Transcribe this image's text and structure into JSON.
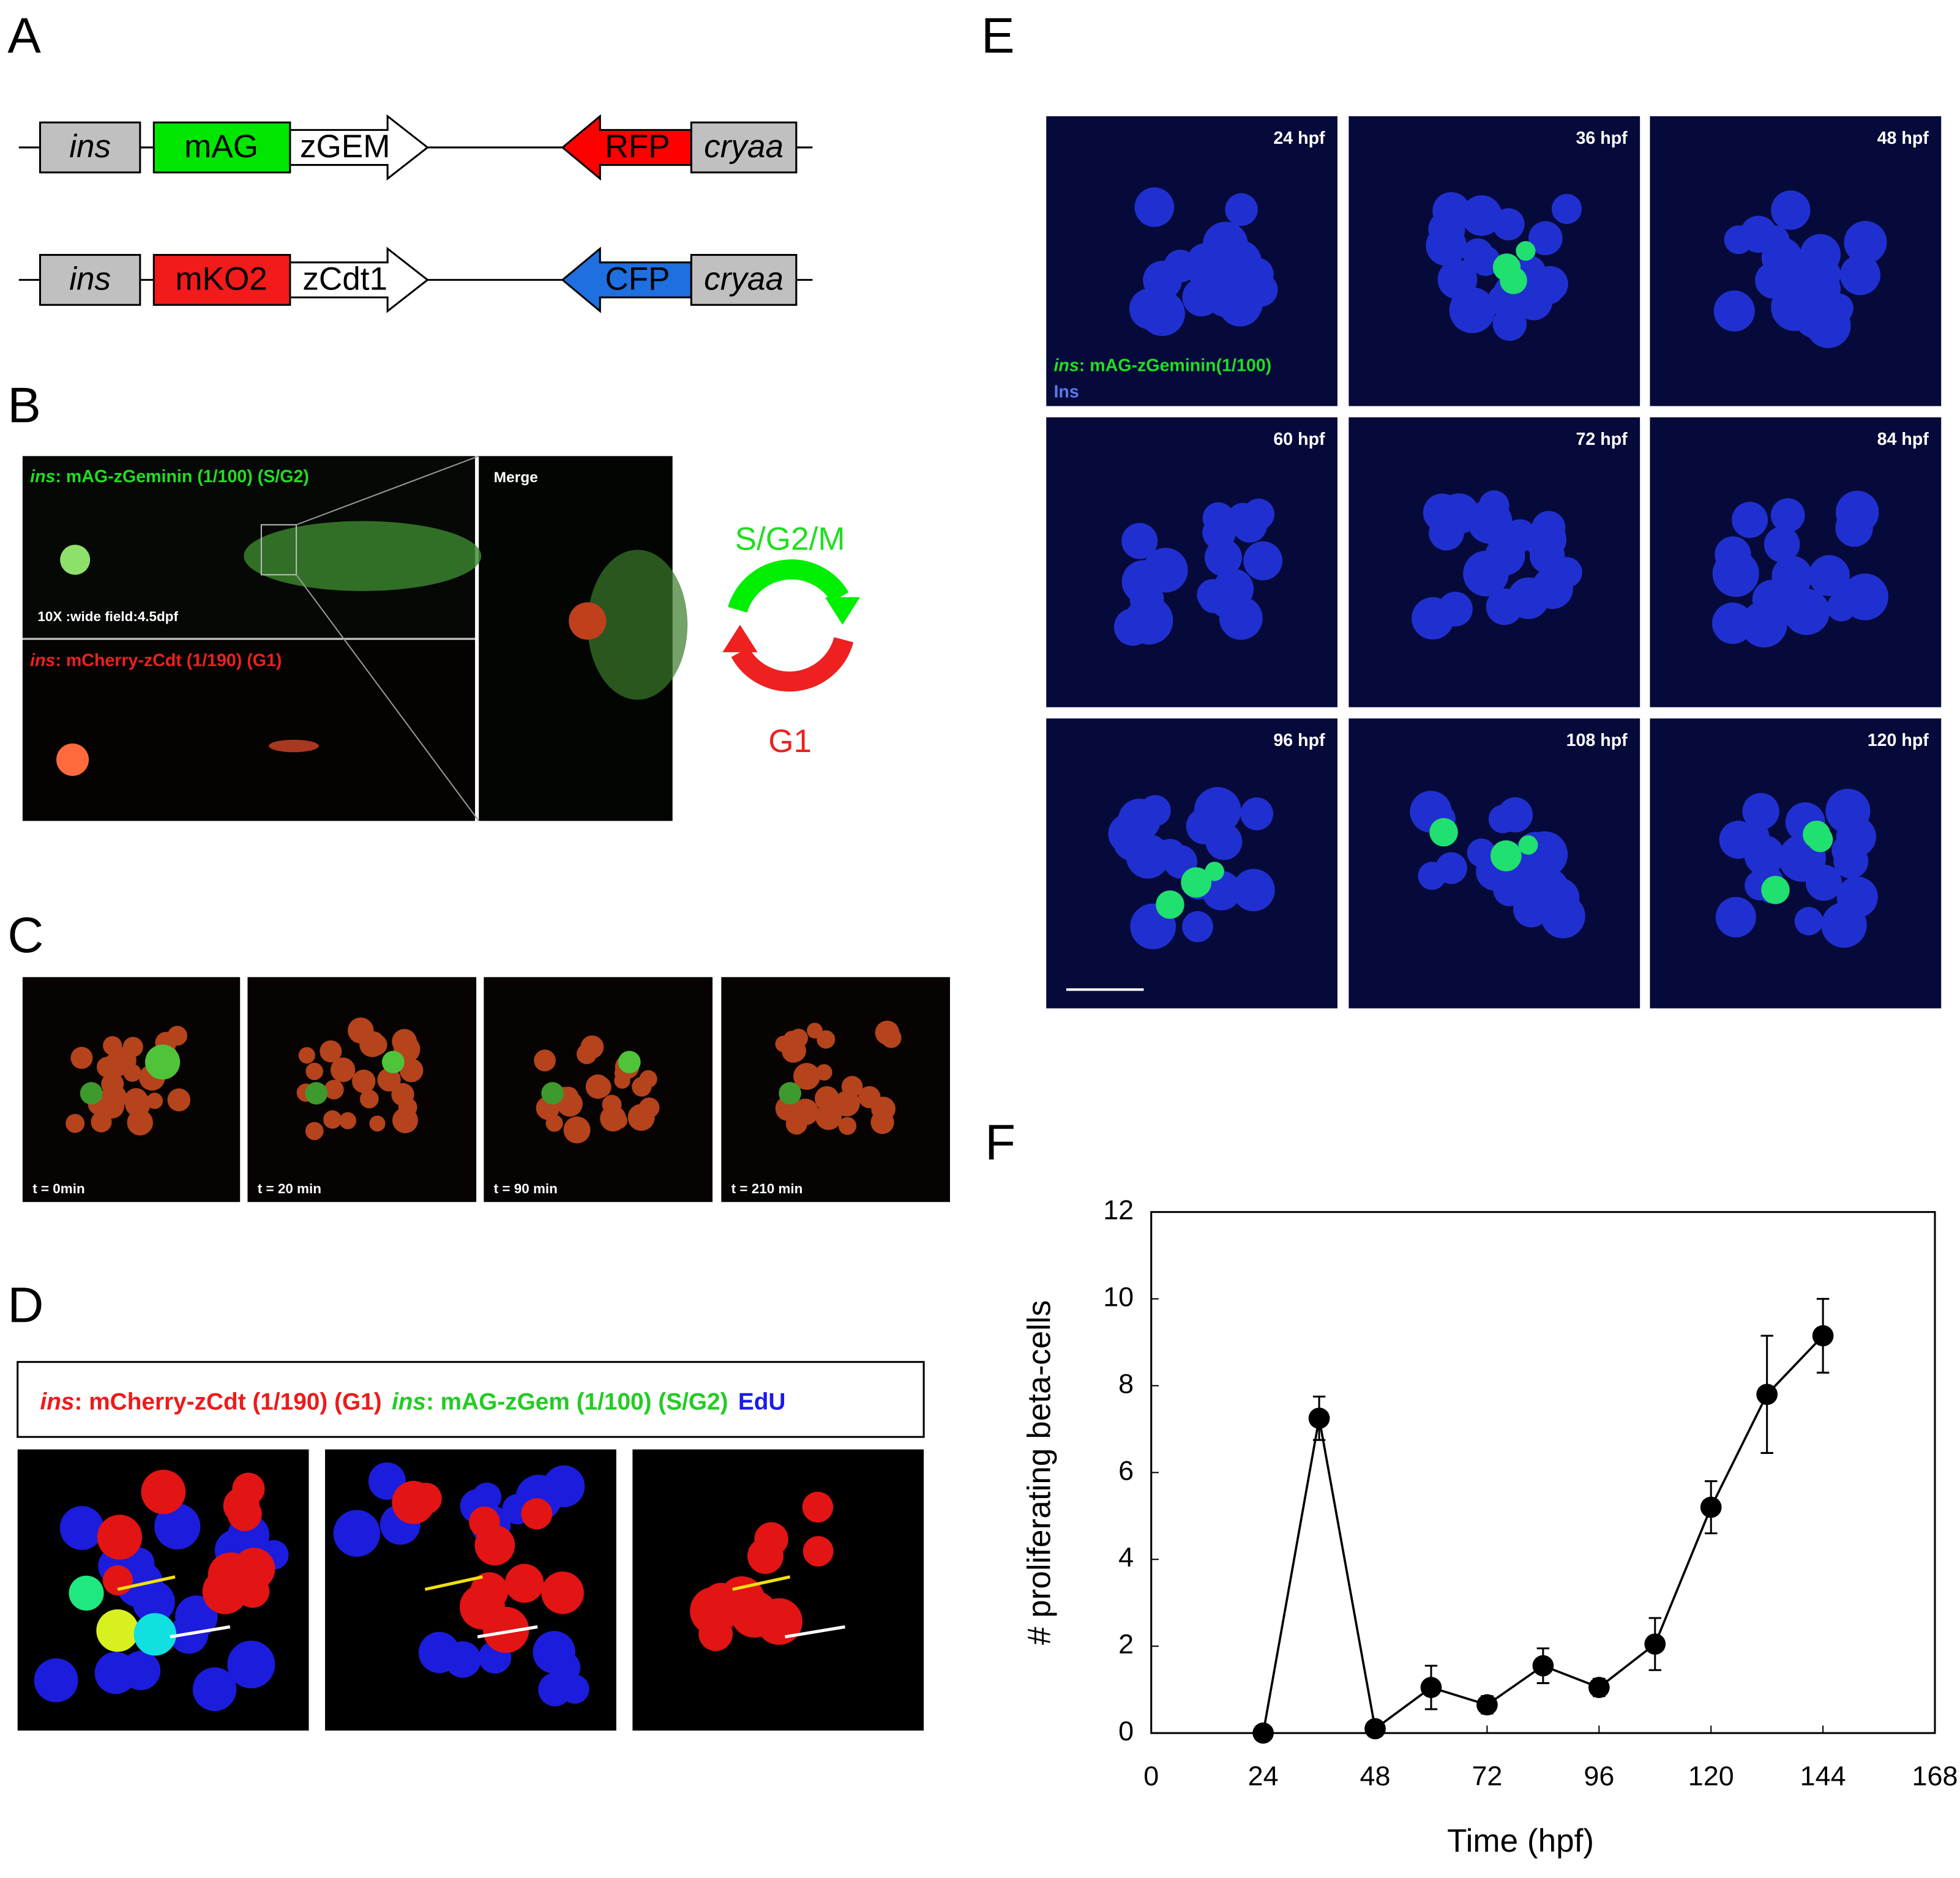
{
  "panel_labels": [
    "A",
    "B",
    "C",
    "D",
    "E",
    "F"
  ],
  "construct_A": {
    "row1": [
      "ins",
      "mAG",
      "zGEM",
      "RFP",
      "cryaa"
    ],
    "row2": [
      "ins",
      "mKO2",
      "zCdt1",
      "CFP",
      "cryaa"
    ]
  },
  "panel_B": {
    "green_gene": "ins",
    "green_rest": ": mAG-zGeminin (1/100) (S/G2)",
    "wide_field": "10X :wide field:4.5dpf",
    "red_gene": "ins",
    "red_rest": ": mCherry-zCdt (1/190)  (G1)",
    "merge": "Merge",
    "cycle_top": "S/G2/M",
    "cycle_bottom": "G1"
  },
  "panel_C": {
    "times": [
      "t = 0min",
      "t = 20 min",
      "t = 90 min",
      "t = 210 min"
    ]
  },
  "panel_D": {
    "red_gene": "ins",
    "red_rest": ": mCherry-zCdt (1/190) (G1)",
    "green_gene": "ins",
    "green_rest": ": mAG-zGem (1/100) (S/G2)",
    "edu": "EdU"
  },
  "panel_E": {
    "times": [
      "24 hpf",
      "36 hpf",
      "48 hpf",
      "60 hpf",
      "72 hpf",
      "84 hpf",
      "96 hpf",
      "108 hpf",
      "120 hpf"
    ],
    "legend_gene": "ins",
    "legend_rest": ": mAG-zGeminin(1/100)",
    "legend_ins": "Ins"
  },
  "chart_data": {
    "type": "line",
    "x_label": "Time (hpf)",
    "y_label": "# proliferating beta-cells",
    "x": [
      24,
      36,
      48,
      60,
      72,
      84,
      96,
      108,
      120,
      132,
      144
    ],
    "values": [
      0,
      7.25,
      0.1,
      1.05,
      0.65,
      1.55,
      1.05,
      2.05,
      5.2,
      7.8,
      9.15
    ],
    "errors": [
      0,
      0.5,
      0,
      0.5,
      0.2,
      0.4,
      0.2,
      0.6,
      0.6,
      1.35,
      0.85
    ],
    "color": "#000000",
    "xlim": [
      0,
      168
    ],
    "xticks": [
      0,
      24,
      48,
      72,
      96,
      120,
      144,
      168
    ],
    "ylim": [
      0,
      12
    ],
    "yticks": [
      0,
      2,
      4,
      6,
      8,
      10,
      12
    ]
  }
}
